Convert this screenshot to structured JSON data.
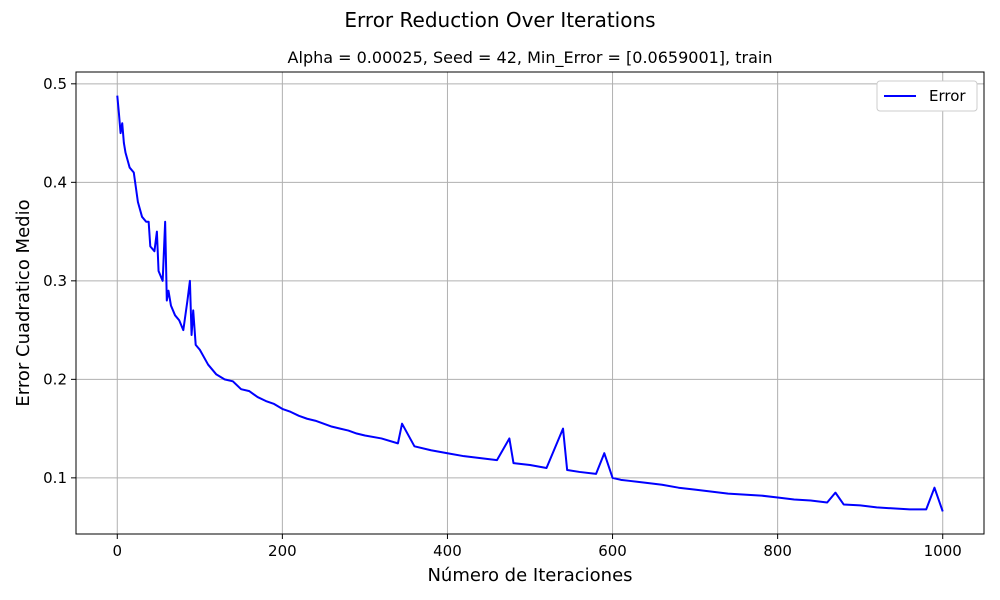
{
  "figure": {
    "suptitle": "Error Reduction Over Iterations",
    "title": "Alpha = 0.00025, Seed = 42, Min_Error = [0.0659001], train"
  },
  "chart_data": {
    "type": "line",
    "title": "Alpha = 0.00025, Seed = 42, Min_Error = [0.0659001], train",
    "xlabel": "Número de Iteraciones",
    "ylabel": "Error Cuadratico Medio",
    "xlim": [
      -50,
      1050
    ],
    "ylim": [
      0.043,
      0.512
    ],
    "xticks": [
      0,
      200,
      400,
      600,
      800,
      1000
    ],
    "yticks": [
      0.1,
      0.2,
      0.3,
      0.4,
      0.5
    ],
    "ytick_labels": [
      "0.1",
      "0.2",
      "0.3",
      "0.4",
      "0.5"
    ],
    "grid": true,
    "legend": {
      "position": "top-right",
      "entries": [
        "Error"
      ]
    },
    "series": [
      {
        "name": "Error",
        "color": "#0000ff",
        "x": [
          0,
          2,
          4,
          6,
          8,
          10,
          15,
          20,
          25,
          30,
          35,
          38,
          40,
          45,
          48,
          50,
          55,
          58,
          60,
          62,
          65,
          70,
          75,
          80,
          85,
          88,
          90,
          92,
          95,
          100,
          110,
          120,
          130,
          140,
          150,
          160,
          170,
          180,
          190,
          200,
          210,
          220,
          230,
          240,
          250,
          260,
          270,
          280,
          290,
          300,
          320,
          340,
          345,
          360,
          380,
          400,
          420,
          440,
          460,
          475,
          480,
          500,
          520,
          540,
          545,
          560,
          580,
          590,
          600,
          610,
          620,
          640,
          660,
          680,
          700,
          720,
          740,
          760,
          780,
          800,
          820,
          840,
          860,
          870,
          880,
          900,
          920,
          940,
          960,
          980,
          990,
          1000
        ],
        "y": [
          0.488,
          0.47,
          0.45,
          0.46,
          0.44,
          0.43,
          0.415,
          0.41,
          0.38,
          0.365,
          0.36,
          0.36,
          0.335,
          0.33,
          0.35,
          0.31,
          0.3,
          0.36,
          0.28,
          0.29,
          0.275,
          0.265,
          0.26,
          0.25,
          0.28,
          0.3,
          0.245,
          0.27,
          0.235,
          0.23,
          0.215,
          0.205,
          0.2,
          0.198,
          0.19,
          0.188,
          0.182,
          0.178,
          0.175,
          0.17,
          0.167,
          0.163,
          0.16,
          0.158,
          0.155,
          0.152,
          0.15,
          0.148,
          0.145,
          0.143,
          0.14,
          0.135,
          0.155,
          0.132,
          0.128,
          0.125,
          0.122,
          0.12,
          0.118,
          0.14,
          0.115,
          0.113,
          0.11,
          0.15,
          0.108,
          0.106,
          0.104,
          0.125,
          0.1,
          0.098,
          0.097,
          0.095,
          0.093,
          0.09,
          0.088,
          0.086,
          0.084,
          0.083,
          0.082,
          0.08,
          0.078,
          0.077,
          0.075,
          0.085,
          0.073,
          0.072,
          0.07,
          0.069,
          0.068,
          0.068,
          0.09,
          0.0659
        ]
      }
    ]
  }
}
